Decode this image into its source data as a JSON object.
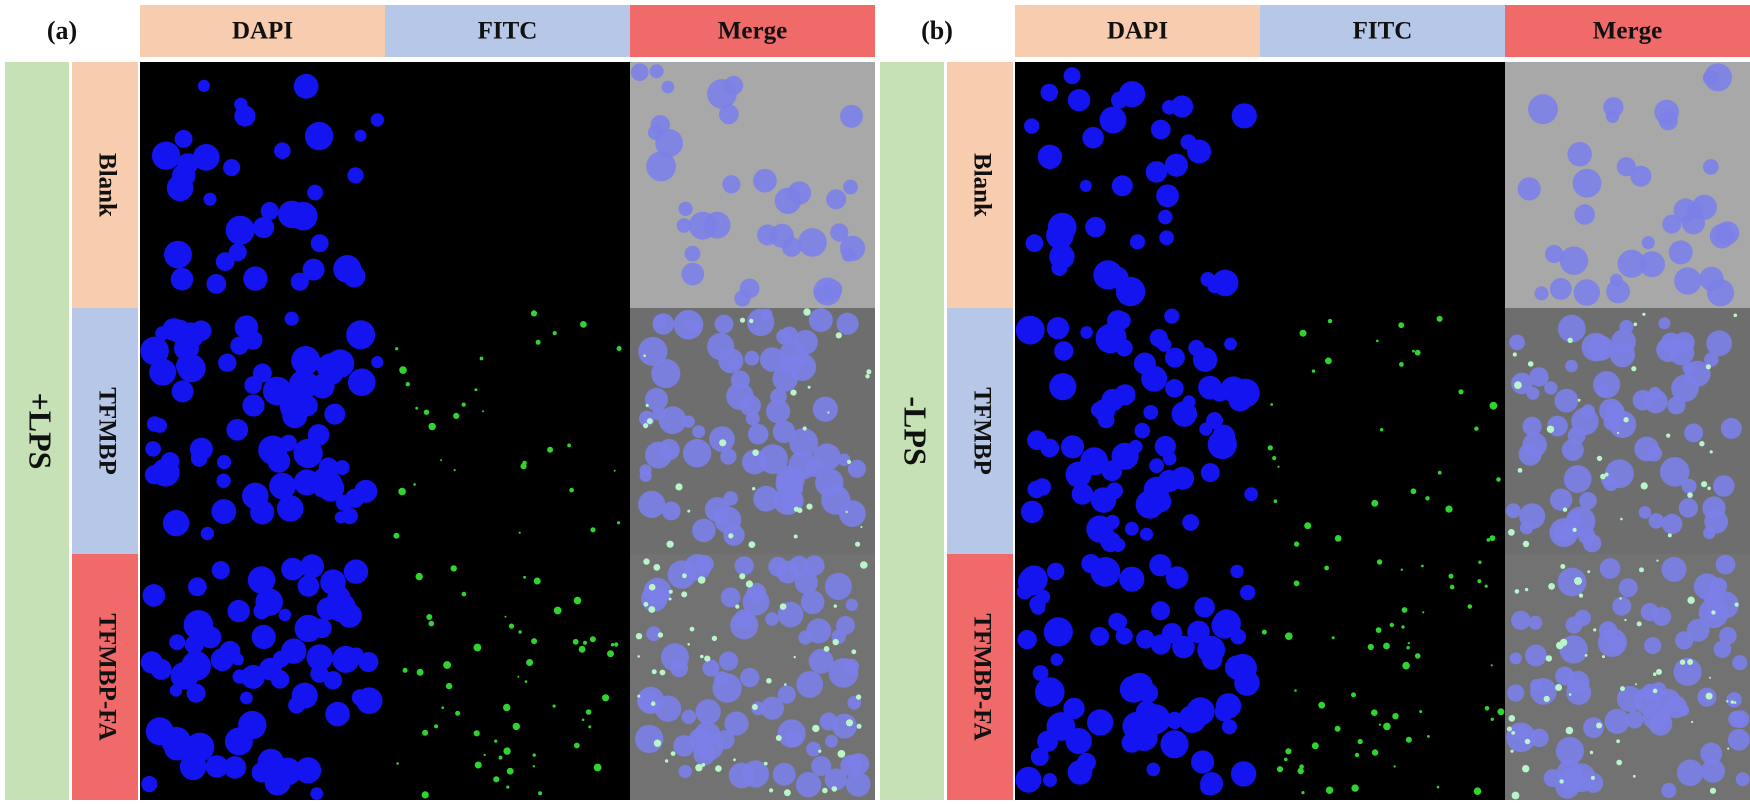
{
  "panels": [
    {
      "label": "(a)",
      "condition": "+LPS",
      "columns": [
        "DAPI",
        "FITC",
        "Merge"
      ],
      "rows": [
        "Blank",
        "TFMBP",
        "TFMBP-FA"
      ]
    },
    {
      "label": "(b)",
      "condition": "-LPS",
      "columns": [
        "DAPI",
        "FITC",
        "Merge"
      ],
      "rows": [
        "Blank",
        "TFMBP",
        "TFMBP-FA"
      ]
    }
  ]
}
